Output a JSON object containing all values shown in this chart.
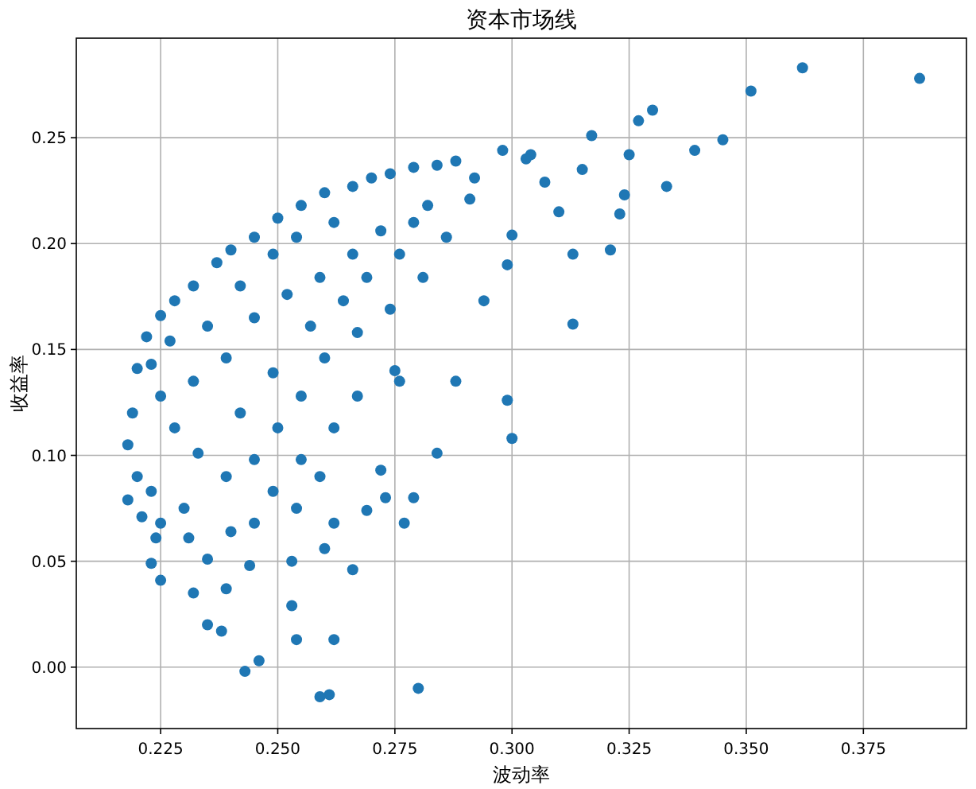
{
  "chart_data": {
    "type": "scatter",
    "title": "资本市场线",
    "xlabel": "波动率",
    "ylabel": "收益率",
    "color": "#1f77b4",
    "marker": "circle",
    "grid": true,
    "xlim": [
      0.207,
      0.397
    ],
    "ylim": [
      -0.029,
      0.297
    ],
    "xticks": [
      0.225,
      {
        "value": 0.25,
        "label": "0.250"
      },
      0.275,
      {
        "value": 0.3,
        "label": "0.300"
      },
      0.325,
      {
        "value": 0.35,
        "label": "0.350"
      },
      0.375
    ],
    "yticks": [
      {
        "value": 0,
        "label": "0.00"
      },
      0.05,
      {
        "value": 0.1,
        "label": "0.10"
      },
      0.15,
      {
        "value": 0.2,
        "label": "0.20"
      },
      0.25
    ],
    "x": [
      0.387,
      0.362,
      0.351,
      0.345,
      0.339,
      0.333,
      0.33,
      0.327,
      0.325,
      0.324,
      0.323,
      0.321,
      0.317,
      0.313,
      0.313,
      0.315,
      0.31,
      0.307,
      0.304,
      0.303,
      0.3,
      0.299,
      0.3,
      0.294,
      0.288,
      0.299,
      0.298,
      0.28,
      0.279,
      0.277,
      0.273,
      0.269,
      0.266,
      0.261,
      0.259,
      0.254,
      0.262,
      0.246,
      0.243,
      0.253,
      0.235,
      0.238,
      0.239,
      0.232,
      0.225,
      0.223,
      0.224,
      0.26,
      0.253,
      0.244,
      0.235,
      0.231,
      0.272,
      0.276,
      0.284,
      0.275,
      0.218,
      0.219,
      0.22,
      0.222,
      0.225,
      0.228,
      0.232,
      0.237,
      0.24,
      0.245,
      0.25,
      0.255,
      0.26,
      0.266,
      0.27,
      0.274,
      0.279,
      0.284,
      0.288,
      0.292,
      0.291,
      0.22,
      0.218,
      0.221,
      0.225,
      0.23,
      0.223,
      0.228,
      0.232,
      0.239,
      0.245,
      0.252,
      0.259,
      0.266,
      0.272,
      0.279,
      0.286,
      0.281,
      0.274,
      0.267,
      0.26,
      0.255,
      0.25,
      0.245,
      0.239,
      0.233,
      0.242,
      0.249,
      0.257,
      0.264,
      0.269,
      0.276,
      0.282,
      0.225,
      0.223,
      0.227,
      0.235,
      0.242,
      0.249,
      0.254,
      0.262,
      0.259,
      0.254,
      0.249,
      0.262,
      0.267,
      0.245,
      0.24,
      0.262,
      0.255
    ],
    "values": [
      0.278,
      0.283,
      0.272,
      0.249,
      0.244,
      0.227,
      0.263,
      0.258,
      0.242,
      0.223,
      0.214,
      0.197,
      0.251,
      0.162,
      0.195,
      0.235,
      0.215,
      0.229,
      0.242,
      0.24,
      0.108,
      0.126,
      0.204,
      0.173,
      0.135,
      0.19,
      0.244,
      -0.01,
      0.08,
      0.068,
      0.08,
      0.074,
      0.046,
      -0.013,
      -0.014,
      0.013,
      0.013,
      0.003,
      -0.002,
      0.029,
      0.02,
      0.017,
      0.037,
      0.035,
      0.041,
      0.049,
      0.061,
      0.056,
      0.05,
      0.048,
      0.051,
      0.061,
      0.093,
      0.135,
      0.101,
      0.14,
      0.105,
      0.12,
      0.141,
      0.156,
      0.166,
      0.173,
      0.18,
      0.191,
      0.197,
      0.203,
      0.212,
      0.218,
      0.224,
      0.227,
      0.231,
      0.233,
      0.236,
      0.237,
      0.239,
      0.231,
      0.221,
      0.09,
      0.079,
      0.071,
      0.068,
      0.075,
      0.083,
      0.113,
      0.135,
      0.146,
      0.165,
      0.176,
      0.184,
      0.195,
      0.206,
      0.21,
      0.203,
      0.184,
      0.169,
      0.158,
      0.146,
      0.128,
      0.113,
      0.098,
      0.09,
      0.101,
      0.12,
      0.139,
      0.161,
      0.173,
      0.184,
      0.195,
      0.218,
      0.128,
      0.143,
      0.154,
      0.161,
      0.18,
      0.195,
      0.203,
      0.21,
      0.09,
      0.075,
      0.083,
      0.113,
      0.128,
      0.068,
      0.064,
      0.068,
      0.098
    ]
  }
}
